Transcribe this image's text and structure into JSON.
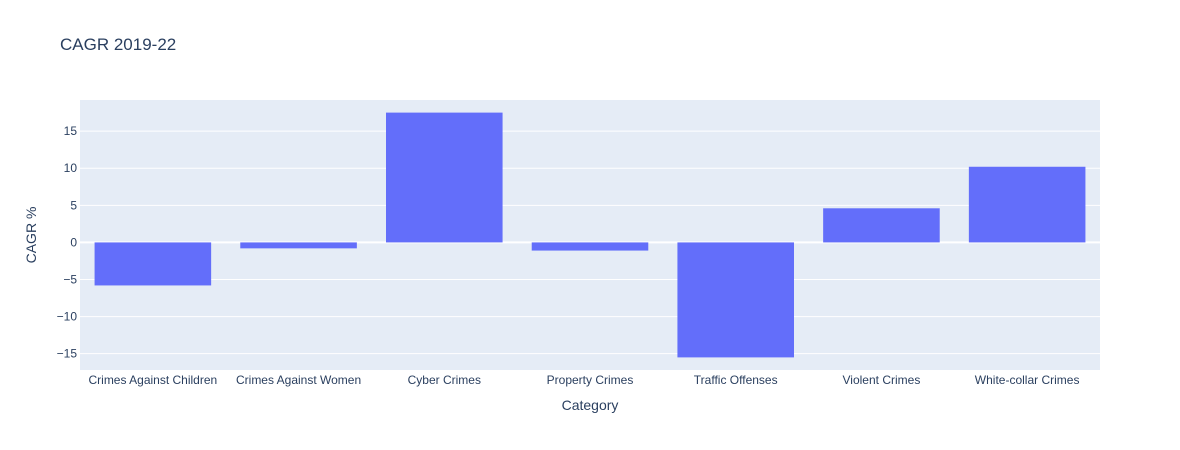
{
  "chart_data": {
    "type": "bar",
    "title": "CAGR 2019-22",
    "xlabel": "Category",
    "ylabel": "CAGR %",
    "categories": [
      "Crimes Against Children",
      "Crimes Against Women",
      "Cyber Crimes",
      "Property Crimes",
      "Traffic Offenses",
      "Violent Crimes",
      "White-collar Crimes"
    ],
    "values": [
      -5.8,
      -0.8,
      17.5,
      -1.1,
      -15.5,
      4.6,
      10.2
    ],
    "ylim": [
      -17.2,
      19.2
    ],
    "yticks": [
      -15,
      -10,
      -5,
      0,
      5,
      10,
      15
    ],
    "ytick_labels": [
      "−15",
      "−10",
      "−5",
      "0",
      "5",
      "10",
      "15"
    ],
    "grid": true,
    "bar_color": "#636efa",
    "plot_bg": "#e5ecf6"
  }
}
